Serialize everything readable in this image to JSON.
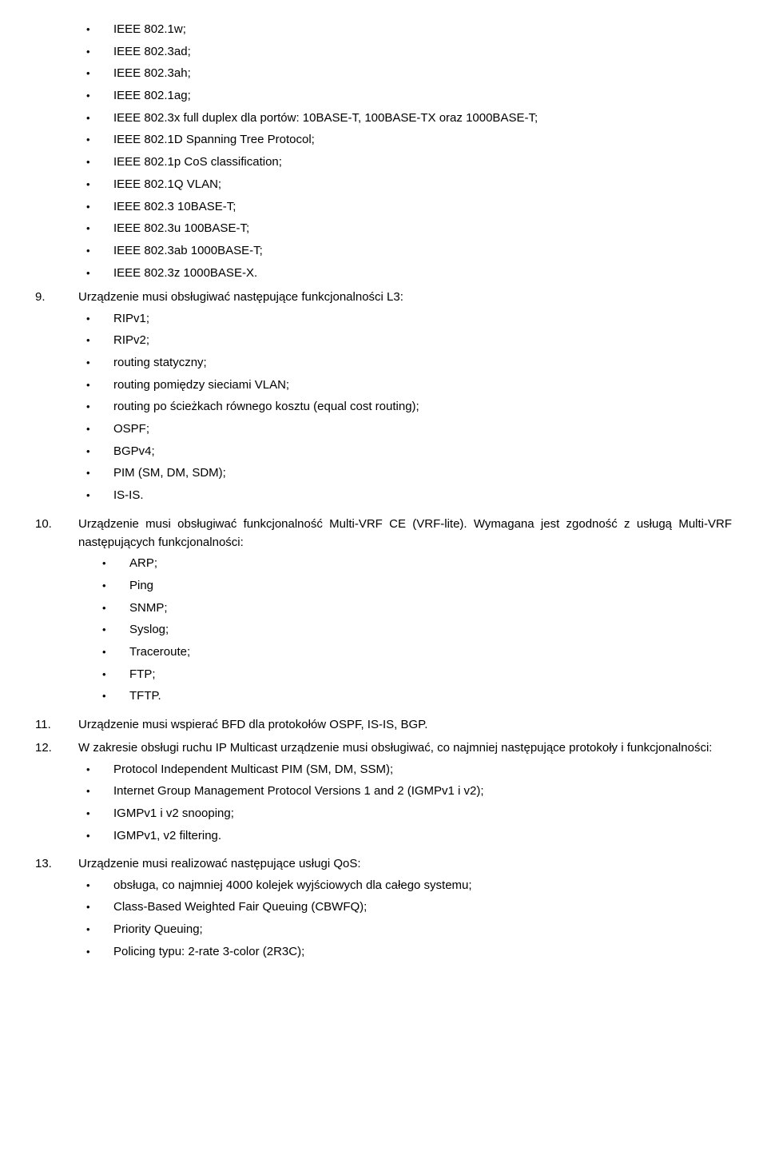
{
  "orphan_bullets": [
    "IEEE 802.1w;",
    "IEEE 802.3ad;",
    "IEEE 802.3ah;",
    "IEEE 802.1ag;",
    "IEEE 802.3x full duplex dla portów: 10BASE-T, 100BASE-TX oraz 1000BASE-T;",
    "IEEE 802.1D Spanning Tree Protocol;",
    "IEEE 802.1p CoS classification;",
    "IEEE 802.1Q VLAN;",
    "IEEE 802.3 10BASE-T;",
    "IEEE 802.3u 100BASE-T;",
    "IEEE 802.3ab 1000BASE-T;",
    "IEEE 802.3z 1000BASE-X."
  ],
  "items": [
    {
      "num": "9.",
      "text": "Urządzenie musi obsługiwać następujące funkcjonalności L3:",
      "bullets": [
        "RIPv1;",
        "RIPv2;",
        "routing statyczny;",
        "routing pomiędzy sieciami VLAN;",
        "routing po ścieżkach równego kosztu (equal cost routing);",
        "OSPF;",
        "BGPv4;",
        "PIM (SM, DM, SDM);",
        "IS-IS."
      ]
    },
    {
      "num": "10.",
      "text": "Urządzenie musi obsługiwać funkcjonalność Multi-VRF CE (VRF-lite). Wymagana jest zgodność z usługą Multi-VRF następujących funkcjonalności:",
      "bullets_level": 2,
      "bullets": [
        "ARP;",
        "Ping",
        "SNMP;",
        "Syslog;",
        "Traceroute;",
        "FTP;",
        "TFTP."
      ]
    },
    {
      "num": "11.",
      "text": "Urządzenie musi wspierać BFD dla protokołów OSPF, IS-IS, BGP."
    },
    {
      "num": "12.",
      "text": "W zakresie obsługi ruchu IP Multicast urządzenie musi obsługiwać, co najmniej następujące protokoły i funkcjonalności:",
      "bullets": [
        "Protocol Independent Multicast PIM (SM, DM, SSM);",
        "Internet Group Management Protocol Versions 1 and 2 (IGMPv1 i v2);",
        "IGMPv1 i v2 snooping;",
        "IGMPv1, v2  filtering."
      ]
    },
    {
      "num": "13.",
      "text": "Urządzenie musi realizować następujące usługi QoS:",
      "bullets": [
        "obsługa, co najmniej 4000 kolejek wyjściowych dla całego systemu;",
        "Class-Based Weighted Fair Queuing (CBWFQ);",
        "Priority Queuing;",
        "Policing typu: 2-rate 3-color (2R3C);"
      ]
    }
  ],
  "bullet_glyph": "•"
}
